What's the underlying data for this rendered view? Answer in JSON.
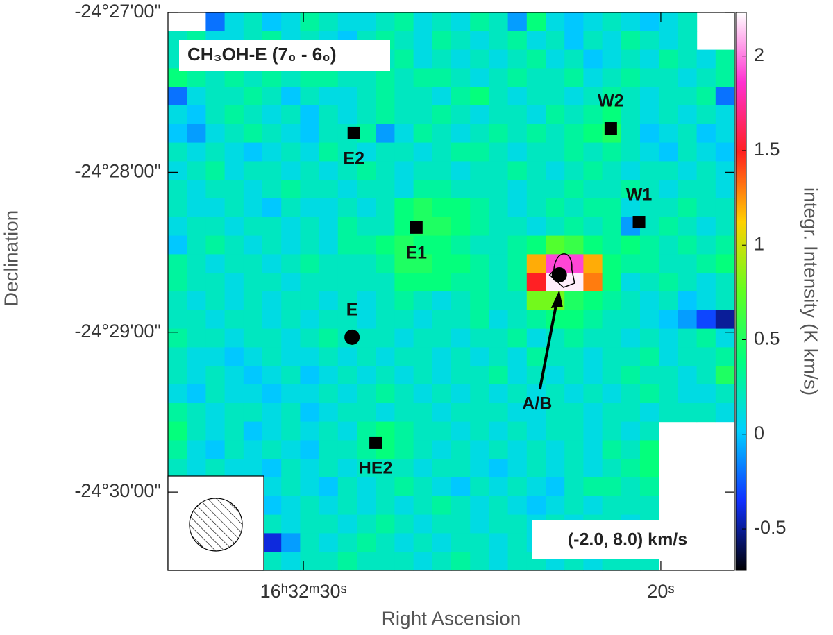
{
  "chart_data": {
    "type": "heatmap",
    "title": "CH₃OH-E (7₀ - 6₀)",
    "title_color": "#e8402a",
    "annotation": "(-2.0, 8.0) km/s",
    "x_label": "Right Ascension",
    "y_label": "Declination",
    "colorbar_label": "integr. Intensity (K km/s)",
    "xlim": [
      33.79,
      17.94
    ],
    "xticks": [
      {
        "value": 30,
        "label": "16ʰ32ᵐ30ˢ"
      },
      {
        "value": 20,
        "label": "20ˢ"
      }
    ],
    "ylim": [
      -30.49,
      -27.0
    ],
    "yticks": [
      {
        "value": -27,
        "label": "-24°27'00\""
      },
      {
        "value": -28,
        "label": "-24°28'00\""
      },
      {
        "value": -29,
        "label": "-24°29'00\""
      },
      {
        "value": -30,
        "label": "-24°30'00\""
      }
    ],
    "clim": [
      -0.72,
      2.23
    ],
    "cticks": [
      -0.5,
      0,
      0.5,
      1,
      1.5,
      2
    ],
    "colormap": [
      "#000000",
      "#1030ff",
      "#00d0ff",
      "#00ff80",
      "#60ff20",
      "#ffd000",
      "#ff2020",
      "#ff30d0",
      "#ffffff"
    ],
    "values": [
      [
        null,
        null,
        -0.2,
        0.1,
        0.2,
        0.0,
        0.1,
        0.3,
        0.2,
        0.1,
        0.1,
        0.2,
        0.3,
        0.1,
        0.2,
        0.1,
        0.3,
        0.2,
        -0.1,
        0.4,
        0.1,
        0.0,
        0.1,
        0.2,
        0.1,
        0.0,
        0.1,
        0.2,
        null,
        null
      ],
      [
        0.2,
        0.3,
        0.1,
        0.1,
        0.2,
        0.3,
        0.1,
        0.2,
        0.1,
        0.0,
        0.2,
        0.3,
        0.2,
        0.1,
        0.3,
        0.2,
        0.1,
        0.2,
        0.3,
        0.1,
        0.2,
        0.0,
        0.2,
        0.1,
        0.3,
        0.2,
        0.1,
        0.2,
        null,
        null
      ],
      [
        0.2,
        0.1,
        0.2,
        0.3,
        0.1,
        0.2,
        0.2,
        0.1,
        0.3,
        0.2,
        0.1,
        0.2,
        0.3,
        0.1,
        0.2,
        0.1,
        0.2,
        0.1,
        0.2,
        0.3,
        0.1,
        0.2,
        0.0,
        0.1,
        0.2,
        0.1,
        0.3,
        0.2,
        0.1,
        0.3
      ],
      [
        0.4,
        0.3,
        0.2,
        0.3,
        0.2,
        0.3,
        0.2,
        0.3,
        0.3,
        0.2,
        0.2,
        0.3,
        0.2,
        0.3,
        0.3,
        0.2,
        0.1,
        0.2,
        0.3,
        0.2,
        0.2,
        0.3,
        0.1,
        0.2,
        0.3,
        0.2,
        0.2,
        0.1,
        0.2,
        0.3
      ],
      [
        -0.2,
        0.1,
        0.2,
        0.2,
        0.3,
        0.2,
        0.0,
        0.2,
        0.1,
        0.1,
        0.2,
        0.3,
        0.2,
        0.2,
        0.1,
        0.3,
        0.4,
        0.2,
        0.1,
        0.2,
        0.2,
        0.1,
        0.2,
        0.3,
        0.2,
        0.1,
        0.2,
        0.2,
        0.3,
        -0.2
      ],
      [
        0.1,
        0.0,
        0.2,
        0.3,
        0.2,
        0.1,
        0.2,
        0.0,
        0.2,
        0.1,
        0.2,
        0.3,
        0.2,
        0.2,
        0.3,
        0.2,
        0.1,
        0.2,
        0.2,
        0.1,
        0.3,
        0.2,
        0.3,
        0.4,
        0.2,
        0.1,
        0.2,
        0.1,
        0.2,
        0.1
      ],
      [
        0.0,
        -0.1,
        0.1,
        0.2,
        0.3,
        0.2,
        0.1,
        0.0,
        0.2,
        0.2,
        0.3,
        -0.1,
        0.1,
        0.3,
        0.2,
        0.1,
        0.2,
        0.3,
        0.2,
        0.3,
        0.2,
        0.3,
        0.4,
        0.5,
        0.2,
        0.0,
        0.1,
        0.2,
        0.0,
        0.1
      ],
      [
        0.2,
        0.1,
        0.2,
        0.1,
        0.0,
        0.1,
        0.2,
        0.1,
        0.3,
        0.2,
        0.1,
        0.2,
        0.2,
        0.1,
        0.2,
        0.3,
        0.3,
        0.2,
        0.1,
        0.2,
        0.2,
        0.3,
        0.2,
        0.3,
        0.2,
        0.1,
        0.0,
        0.2,
        0.1,
        0.0
      ],
      [
        0.1,
        0.2,
        0.3,
        0.1,
        0.2,
        0.2,
        0.1,
        0.2,
        0.1,
        0.2,
        0.3,
        0.2,
        0.1,
        0.2,
        0.2,
        0.1,
        0.2,
        0.2,
        0.3,
        0.2,
        0.1,
        0.2,
        0.3,
        0.2,
        0.1,
        0.2,
        0.2,
        0.1,
        0.2,
        0.1
      ],
      [
        0.2,
        0.1,
        0.2,
        0.2,
        0.1,
        0.2,
        0.3,
        0.2,
        0.2,
        0.1,
        0.2,
        0.2,
        0.1,
        0.3,
        0.3,
        0.2,
        0.2,
        0.2,
        0.1,
        0.2,
        0.2,
        0.3,
        0.2,
        0.2,
        0.3,
        0.2,
        0.1,
        0.2,
        0.2,
        0.1
      ],
      [
        0.2,
        0.1,
        0.1,
        0.2,
        0.1,
        0.0,
        0.2,
        0.1,
        0.1,
        0.2,
        0.1,
        0.2,
        0.4,
        0.5,
        0.4,
        0.4,
        0.3,
        0.2,
        0.1,
        0.2,
        0.3,
        0.2,
        0.3,
        0.3,
        0.1,
        0.2,
        0.2,
        0.3,
        0.2,
        0.2
      ],
      [
        0.1,
        0.2,
        0.2,
        0.1,
        0.2,
        0.2,
        0.1,
        0.2,
        0.1,
        0.3,
        0.2,
        0.2,
        0.4,
        0.5,
        0.5,
        0.4,
        0.3,
        0.2,
        0.2,
        0.1,
        0.2,
        0.3,
        0.2,
        0.3,
        -0.1,
        0.2,
        0.3,
        0.2,
        0.1,
        0.2
      ],
      [
        0.0,
        0.2,
        0.3,
        0.2,
        0.1,
        0.2,
        0.1,
        0.2,
        0.1,
        0.3,
        0.3,
        0.4,
        0.5,
        0.4,
        0.4,
        0.3,
        0.2,
        0.2,
        0.3,
        0.4,
        0.7,
        0.6,
        0.4,
        0.3,
        0.4,
        0.3,
        0.2,
        0.3,
        0.2,
        0.3
      ],
      [
        0.3,
        0.2,
        0.1,
        0.2,
        0.2,
        0.1,
        0.2,
        0.3,
        0.2,
        0.2,
        0.2,
        0.3,
        0.5,
        0.5,
        0.4,
        0.4,
        0.3,
        0.2,
        0.3,
        1.2,
        1.9,
        1.9,
        1.2,
        0.4,
        0.3,
        0.3,
        0.2,
        0.2,
        0.3,
        0.4
      ],
      [
        0.3,
        0.2,
        0.2,
        0.1,
        0.2,
        0.2,
        0.1,
        0.2,
        0.2,
        0.2,
        0.2,
        0.2,
        0.4,
        0.4,
        0.4,
        0.3,
        0.3,
        0.2,
        0.3,
        1.5,
        2.2,
        2.2,
        1.3,
        0.4,
        0.1,
        0.2,
        0.3,
        0.2,
        0.1,
        0.2
      ],
      [
        0.2,
        0.1,
        0.2,
        0.1,
        0.2,
        0.1,
        0.2,
        0.2,
        0.1,
        0.2,
        0.1,
        0.2,
        0.3,
        0.2,
        0.1,
        0.2,
        0.3,
        0.2,
        0.2,
        0.8,
        0.8,
        0.5,
        0.4,
        0.3,
        0.2,
        0.1,
        0.2,
        0.0,
        0.1,
        0.2
      ],
      [
        0.2,
        0.2,
        0.1,
        0.2,
        0.2,
        0.1,
        0.2,
        0.1,
        0.2,
        0.2,
        0.1,
        0.2,
        0.2,
        0.1,
        0.2,
        0.2,
        0.3,
        0.1,
        0.2,
        0.3,
        0.4,
        0.4,
        0.3,
        0.2,
        0.2,
        0.1,
        0.0,
        -0.1,
        -0.3,
        -0.5
      ],
      [
        0.3,
        0.2,
        0.2,
        0.1,
        0.2,
        0.2,
        0.1,
        0.2,
        0.3,
        0.2,
        0.2,
        0.2,
        0.1,
        0.2,
        0.2,
        0.1,
        0.2,
        0.2,
        0.3,
        0.1,
        0.2,
        0.3,
        0.2,
        0.2,
        0.1,
        0.2,
        0.1,
        0.2,
        0.3,
        0.1
      ],
      [
        0.2,
        0.1,
        0.1,
        0.0,
        0.1,
        0.2,
        0.1,
        0.1,
        0.2,
        0.1,
        0.2,
        0.1,
        0.2,
        0.2,
        0.1,
        0.2,
        0.1,
        0.2,
        0.1,
        0.3,
        0.2,
        0.2,
        0.1,
        0.2,
        0.2,
        0.3,
        0.1,
        0.2,
        0.2,
        0.3
      ],
      [
        0.2,
        0.1,
        0.2,
        0.1,
        0.0,
        0.1,
        0.2,
        0.0,
        0.1,
        0.2,
        0.1,
        0.2,
        0.1,
        0.2,
        0.1,
        0.2,
        0.2,
        0.3,
        0.1,
        0.2,
        0.1,
        0.2,
        0.1,
        0.2,
        0.3,
        0.2,
        0.2,
        0.1,
        0.2,
        0.5
      ],
      [
        0.1,
        0.0,
        0.2,
        0.1,
        0.1,
        0.0,
        0.1,
        0.1,
        0.2,
        0.1,
        0.2,
        0.3,
        0.2,
        0.1,
        0.2,
        0.1,
        0.2,
        0.1,
        0.2,
        0.1,
        0.2,
        0.1,
        0.2,
        0.1,
        0.2,
        0.3,
        0.2,
        0.1,
        0.1,
        0.2
      ],
      [
        0.3,
        0.2,
        0.1,
        0.2,
        0.2,
        0.1,
        0.2,
        0.0,
        0.1,
        0.2,
        0.2,
        0.1,
        0.2,
        0.2,
        0.1,
        0.2,
        0.2,
        0.2,
        0.1,
        0.1,
        0.2,
        0.2,
        0.1,
        0.2,
        0.2,
        0.1,
        0.2,
        0.2,
        0.2,
        0.1
      ],
      [
        0.4,
        0.2,
        0.1,
        0.2,
        0.0,
        0.1,
        0.2,
        0.1,
        0.2,
        0.1,
        0.3,
        0.4,
        0.3,
        0.2,
        0.2,
        0.1,
        0.2,
        0.1,
        0.2,
        0.1,
        0.2,
        0.2,
        0.1,
        0.2,
        0.1,
        0.2,
        null,
        null,
        null,
        null
      ],
      [
        0.3,
        0.1,
        0.0,
        0.2,
        0.1,
        0.2,
        0.1,
        0.0,
        0.2,
        0.2,
        0.3,
        0.4,
        0.3,
        0.2,
        0.1,
        0.2,
        0.1,
        0.2,
        0.1,
        0.2,
        0.1,
        0.2,
        0.1,
        0.3,
        0.2,
        0.4,
        null,
        null,
        null,
        null
      ],
      [
        0.2,
        0.1,
        0.2,
        0.1,
        0.1,
        0.0,
        0.2,
        0.1,
        0.2,
        0.1,
        0.2,
        0.2,
        0.2,
        0.1,
        0.2,
        0.2,
        0.1,
        0.0,
        0.1,
        0.2,
        0.1,
        0.2,
        0.1,
        0.2,
        0.3,
        0.4,
        null,
        null,
        null,
        null
      ],
      [
        null,
        null,
        null,
        null,
        null,
        0.1,
        0.2,
        0.1,
        0.0,
        0.2,
        0.1,
        0.2,
        0.3,
        0.2,
        0.1,
        0.0,
        0.2,
        0.1,
        0.2,
        0.1,
        0.0,
        0.2,
        0.3,
        0.3,
        0.2,
        0.3,
        null,
        null,
        null,
        null
      ],
      [
        null,
        null,
        null,
        null,
        null,
        0.0,
        0.1,
        0.2,
        0.1,
        0.2,
        0.1,
        0.2,
        0.1,
        0.2,
        0.3,
        0.2,
        0.1,
        0.2,
        0.1,
        0.0,
        0.1,
        0.2,
        0.1,
        0.2,
        0.2,
        0.2,
        null,
        null,
        null,
        null
      ],
      [
        null,
        null,
        null,
        null,
        null,
        0.2,
        0.1,
        0.2,
        0.2,
        0.1,
        0.2,
        0.3,
        0.2,
        0.1,
        0.2,
        0.2,
        0.1,
        0.2,
        0.2,
        0.1,
        0.2,
        0.1,
        0.2,
        0.2,
        0.1,
        0.2,
        null,
        null,
        null,
        null
      ],
      [
        null,
        null,
        null,
        null,
        null,
        -0.4,
        -0.1,
        0.2,
        0.1,
        0.2,
        0.3,
        0.2,
        0.1,
        0.2,
        0.1,
        0.2,
        0.2,
        0.1,
        0.2,
        0.1,
        0.2,
        0.2,
        0.1,
        0.2,
        0.2,
        0.1,
        null,
        null,
        null,
        null
      ],
      [
        null,
        null,
        null,
        null,
        null,
        0.2,
        0.1,
        0.2,
        0.2,
        0.3,
        0.2,
        0.2,
        0.2,
        0.1,
        0.2,
        0.3,
        0.2,
        0.1,
        0.2,
        0.2,
        0.1,
        0.2,
        0.1,
        0.2,
        0.2,
        0.2,
        null,
        null,
        null,
        null
      ]
    ],
    "markers": [
      {
        "label": "E2",
        "shape": "square",
        "ra": 28.59,
        "dec": -27.755,
        "label_position": "below"
      },
      {
        "label": "E1",
        "shape": "square",
        "ra": 26.84,
        "dec": -28.345,
        "label_position": "below"
      },
      {
        "label": "HE2",
        "shape": "square",
        "ra": 27.98,
        "dec": -29.691,
        "label_position": "below"
      },
      {
        "label": "W2",
        "shape": "square",
        "ra": 21.4,
        "dec": -27.725,
        "label_position": "above"
      },
      {
        "label": "W1",
        "shape": "square",
        "ra": 20.61,
        "dec": -28.311,
        "label_position": "above"
      },
      {
        "label": "E",
        "shape": "circle",
        "ra": 28.64,
        "dec": -29.031,
        "label_position": "above"
      },
      {
        "label": "A/B",
        "shape": "circle",
        "ra": 22.84,
        "dec": -28.641,
        "label_position": "arrow"
      }
    ]
  }
}
